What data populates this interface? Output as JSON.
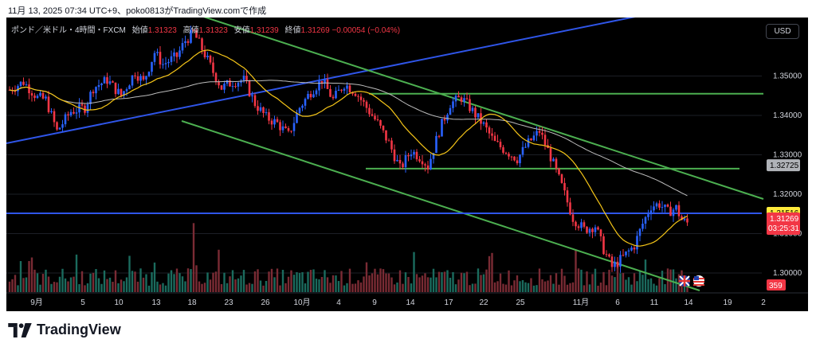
{
  "caption": "11月 13, 2025 07:34 UTC+9、poko0813がTradingView.comで作成",
  "legend": {
    "symbol": "ポンド／米ドル・4時間・FXCM",
    "open_label": "始値",
    "open": "1.31323",
    "high_label": "高値",
    "high": "1.31323",
    "low_label": "安値",
    "low": "1.31239",
    "close_label": "終値",
    "close": "1.31269",
    "change": "−0.00054 (−0.04%)"
  },
  "currency": "USD",
  "brand": "TradingView",
  "colors": {
    "background": "#000000",
    "up": "#2962ff",
    "down": "#f23645",
    "ma_fast": "#f5c518",
    "ma_slow": "#bdbdbd",
    "trend_blue": "#2f55e8",
    "trend_green": "#4caf50",
    "vol_up": "#1b6b5e",
    "vol_down": "#7a2b34"
  },
  "chart_data": {
    "type": "candlestick",
    "y_ticks": [
      "1.30000",
      "1.31000",
      "1.32000",
      "1.33000",
      "1.34000",
      "1.35000"
    ],
    "x_ticks": [
      "9月",
      "5",
      "10",
      "13",
      "18",
      "23",
      "26",
      "10月",
      "4",
      "9",
      "14",
      "17",
      "22",
      "25",
      "11月",
      "6",
      "11",
      "14",
      "19",
      "2"
    ],
    "price_labels": [
      {
        "value": "1.32725",
        "kind": "ma"
      },
      {
        "value": "1.31516",
        "kind": "line"
      },
      {
        "value": "1.31269",
        "kind": "current"
      },
      {
        "value": "03:25:31",
        "kind": "countdown"
      }
    ],
    "volume_label": "359",
    "horizontal_lines": [
      {
        "price": 1.3455,
        "color": "green",
        "from_date": "17"
      },
      {
        "price": 1.3265,
        "color": "green",
        "from_date": "9"
      },
      {
        "price": 1.31516,
        "color": "blue"
      }
    ],
    "price_path": [
      [
        0,
        1.3465
      ],
      [
        5,
        1.3485
      ],
      [
        10,
        1.3445
      ],
      [
        13,
        1.344
      ],
      [
        17,
        1.336
      ],
      [
        22,
        1.341
      ],
      [
        27,
        1.342
      ],
      [
        30,
        1.347
      ],
      [
        35,
        1.349
      ],
      [
        40,
        1.345
      ],
      [
        45,
        1.351
      ],
      [
        48,
        1.3485
      ],
      [
        52,
        1.356
      ],
      [
        55,
        1.353
      ],
      [
        60,
        1.355
      ],
      [
        63,
        1.359
      ],
      [
        66,
        1.361
      ],
      [
        70,
        1.3555
      ],
      [
        73,
        1.351
      ],
      [
        76,
        1.347
      ],
      [
        80,
        1.3485
      ],
      [
        84,
        1.349
      ],
      [
        88,
        1.343
      ],
      [
        92,
        1.3395
      ],
      [
        96,
        1.338
      ],
      [
        100,
        1.335
      ],
      [
        104,
        1.342
      ],
      [
        108,
        1.346
      ],
      [
        112,
        1.349
      ],
      [
        116,
        1.344
      ],
      [
        120,
        1.348
      ],
      [
        124,
        1.346
      ],
      [
        128,
        1.342
      ],
      [
        132,
        1.338
      ],
      [
        136,
        1.333
      ],
      [
        140,
        1.3265
      ],
      [
        144,
        1.331
      ],
      [
        148,
        1.329
      ],
      [
        150,
        1.327
      ],
      [
        154,
        1.336
      ],
      [
        158,
        1.343
      ],
      [
        162,
        1.3445
      ],
      [
        165,
        1.342
      ],
      [
        170,
        1.3375
      ],
      [
        174,
        1.333
      ],
      [
        178,
        1.331
      ],
      [
        182,
        1.329
      ],
      [
        186,
        1.333
      ],
      [
        190,
        1.336
      ],
      [
        194,
        1.3295
      ],
      [
        198,
        1.322
      ],
      [
        202,
        1.314
      ],
      [
        206,
        1.311
      ],
      [
        210,
        1.312
      ],
      [
        213,
        1.306
      ],
      [
        216,
        1.3015
      ],
      [
        220,
        1.304
      ],
      [
        224,
        1.307
      ],
      [
        227,
        1.3125
      ],
      [
        230,
        1.317
      ],
      [
        233,
        1.3175
      ],
      [
        236,
        1.3155
      ],
      [
        239,
        1.3165
      ],
      [
        241,
        1.3135
      ],
      [
        243,
        1.3127
      ]
    ],
    "candle_count": 244,
    "ma_fast_period": 20,
    "ma_slow_period": 75
  }
}
